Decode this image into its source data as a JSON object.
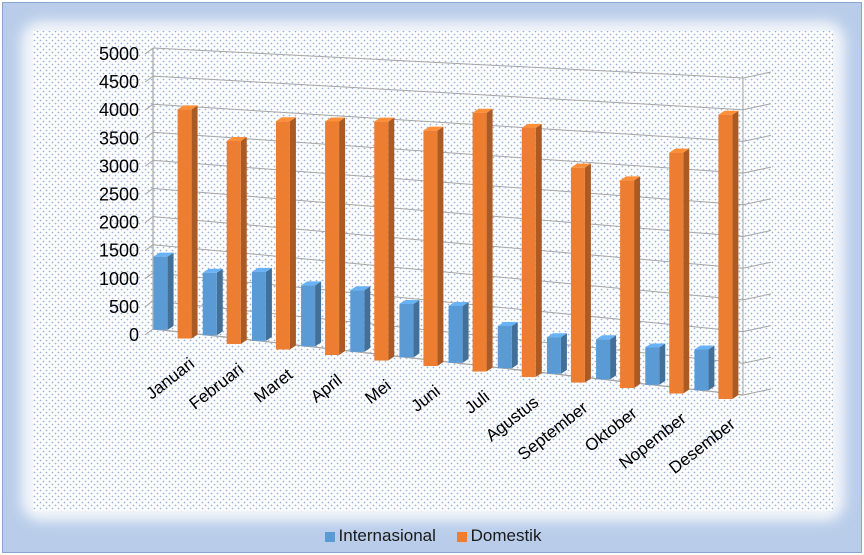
{
  "chart_data": {
    "type": "bar",
    "variant": "3d-clustered-column",
    "title": "",
    "xlabel": "",
    "ylabel": "",
    "ylim": [
      0,
      5000
    ],
    "yticks": [
      0,
      500,
      1000,
      1500,
      2000,
      2500,
      3000,
      3500,
      4000,
      4500,
      5000
    ],
    "grid": true,
    "legend_position": "bottom",
    "categories": [
      "Januari",
      "Februari",
      "Maret",
      "April",
      "Mei",
      "Juni",
      "Juli",
      "Agustus",
      "September",
      "Oktober",
      "Nopember",
      "Desember"
    ],
    "series": [
      {
        "name": "Internasional",
        "color": "#5b9bd5",
        "values": [
          1300,
          1100,
          1200,
          1050,
          1050,
          900,
          950,
          700,
          600,
          650,
          600,
          650
        ]
      },
      {
        "name": "Domestik",
        "color": "#ed7d31",
        "values": [
          4050,
          3550,
          3950,
          4000,
          4050,
          3950,
          4300,
          4100,
          3500,
          3350,
          3850,
          4500
        ]
      }
    ]
  }
}
